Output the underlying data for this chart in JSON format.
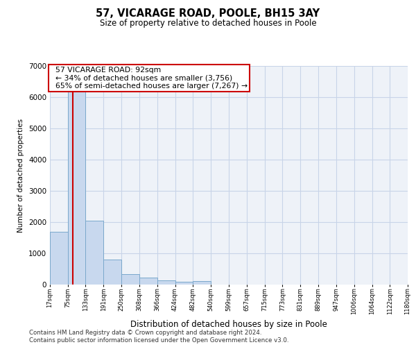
{
  "title": "57, VICARAGE ROAD, POOLE, BH15 3AY",
  "subtitle": "Size of property relative to detached houses in Poole",
  "xlabel": "Distribution of detached houses by size in Poole",
  "ylabel": "Number of detached properties",
  "property_size": 92,
  "property_label": "57 VICARAGE ROAD: 92sqm",
  "pct_smaller": 34,
  "n_smaller": 3756,
  "pct_larger_semi": 65,
  "n_larger_semi": 7267,
  "bin_edges": [
    17,
    75,
    133,
    191,
    250,
    308,
    366,
    424,
    482,
    540,
    599,
    657,
    715,
    773,
    831,
    889,
    947,
    1006,
    1064,
    1122,
    1180
  ],
  "bin_counts": [
    1700,
    6500,
    2050,
    800,
    330,
    220,
    130,
    80,
    120,
    0,
    0,
    0,
    0,
    0,
    0,
    0,
    0,
    0,
    0,
    0
  ],
  "bar_color": "#c8d8ee",
  "bar_edge_color": "#7aa8cc",
  "grid_color": "#c8d4e8",
  "annotation_box_color": "#cc0000",
  "vline_color": "#cc0000",
  "ylim": [
    0,
    7000
  ],
  "yticks": [
    0,
    1000,
    2000,
    3000,
    4000,
    5000,
    6000,
    7000
  ],
  "footnote1": "Contains HM Land Registry data © Crown copyright and database right 2024.",
  "footnote2": "Contains public sector information licensed under the Open Government Licence v3.0.",
  "background_color": "#eef2f8"
}
